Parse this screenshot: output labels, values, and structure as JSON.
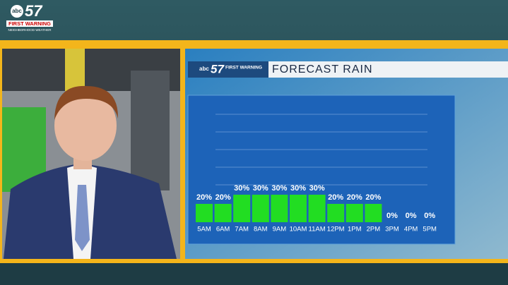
{
  "header": {
    "logo": "abc57",
    "tagline": "FIRST WARNING",
    "subtag": "NEIGHBORHOOD WEATHER"
  },
  "chart_data": {
    "type": "bar",
    "title": "FORECAST RAIN",
    "categories": [
      "5AM",
      "6AM",
      "7AM",
      "8AM",
      "9AM",
      "10AM",
      "11AM",
      "12PM",
      "1PM",
      "2PM",
      "3PM",
      "4PM",
      "5PM"
    ],
    "values": [
      20,
      20,
      30,
      30,
      30,
      30,
      30,
      20,
      20,
      20,
      0,
      0,
      0
    ],
    "value_labels": [
      "20%",
      "20%",
      "30%",
      "30%",
      "30%",
      "30%",
      "30%",
      "20%",
      "20%",
      "20%",
      "0%",
      "0%",
      "0%"
    ],
    "color": "#22dd22"
  }
}
